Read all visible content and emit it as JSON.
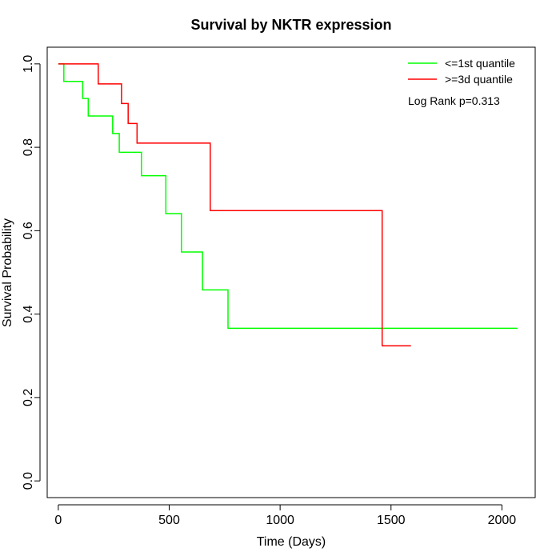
{
  "chart_data": {
    "type": "line",
    "title": "Survival by NKTR expression",
    "xlabel": "Time (Days)",
    "ylabel": "Survival Probability",
    "xlim": [
      -50,
      2150
    ],
    "ylim": [
      -0.04,
      1.04
    ],
    "xticks": [
      0,
      500,
      1000,
      1500,
      2000
    ],
    "yticks": [
      0.0,
      0.2,
      0.4,
      0.6,
      0.8,
      1.0
    ],
    "xtick_labels": [
      "0",
      "500",
      "1000",
      "1500",
      "2000"
    ],
    "ytick_labels": [
      "0.0",
      "0.2",
      "0.4",
      "0.6",
      "0.8",
      "1.0"
    ],
    "grid": false,
    "legend_position": "top-right",
    "annotation": "Log Rank p=0.313",
    "series": [
      {
        "name": "<=1st quantile",
        "color": "#00ff00",
        "step_points": [
          [
            0,
            1.0
          ],
          [
            25,
            1.0
          ],
          [
            25,
            0.958
          ],
          [
            110,
            0.958
          ],
          [
            110,
            0.917
          ],
          [
            135,
            0.917
          ],
          [
            135,
            0.875
          ],
          [
            245,
            0.875
          ],
          [
            245,
            0.833
          ],
          [
            275,
            0.833
          ],
          [
            275,
            0.788
          ],
          [
            375,
            0.788
          ],
          [
            375,
            0.732
          ],
          [
            485,
            0.732
          ],
          [
            485,
            0.641
          ],
          [
            555,
            0.641
          ],
          [
            555,
            0.549
          ],
          [
            650,
            0.549
          ],
          [
            650,
            0.458
          ],
          [
            765,
            0.458
          ],
          [
            765,
            0.366
          ],
          [
            2070,
            0.366
          ]
        ]
      },
      {
        "name": ">=3d quantile",
        "color": "#ff0000",
        "step_points": [
          [
            0,
            1.0
          ],
          [
            180,
            1.0
          ],
          [
            180,
            0.952
          ],
          [
            285,
            0.952
          ],
          [
            285,
            0.905
          ],
          [
            315,
            0.905
          ],
          [
            315,
            0.857
          ],
          [
            355,
            0.857
          ],
          [
            355,
            0.81
          ],
          [
            685,
            0.81
          ],
          [
            685,
            0.648
          ],
          [
            1460,
            0.648
          ],
          [
            1460,
            0.324
          ],
          [
            1590,
            0.324
          ]
        ]
      }
    ]
  }
}
